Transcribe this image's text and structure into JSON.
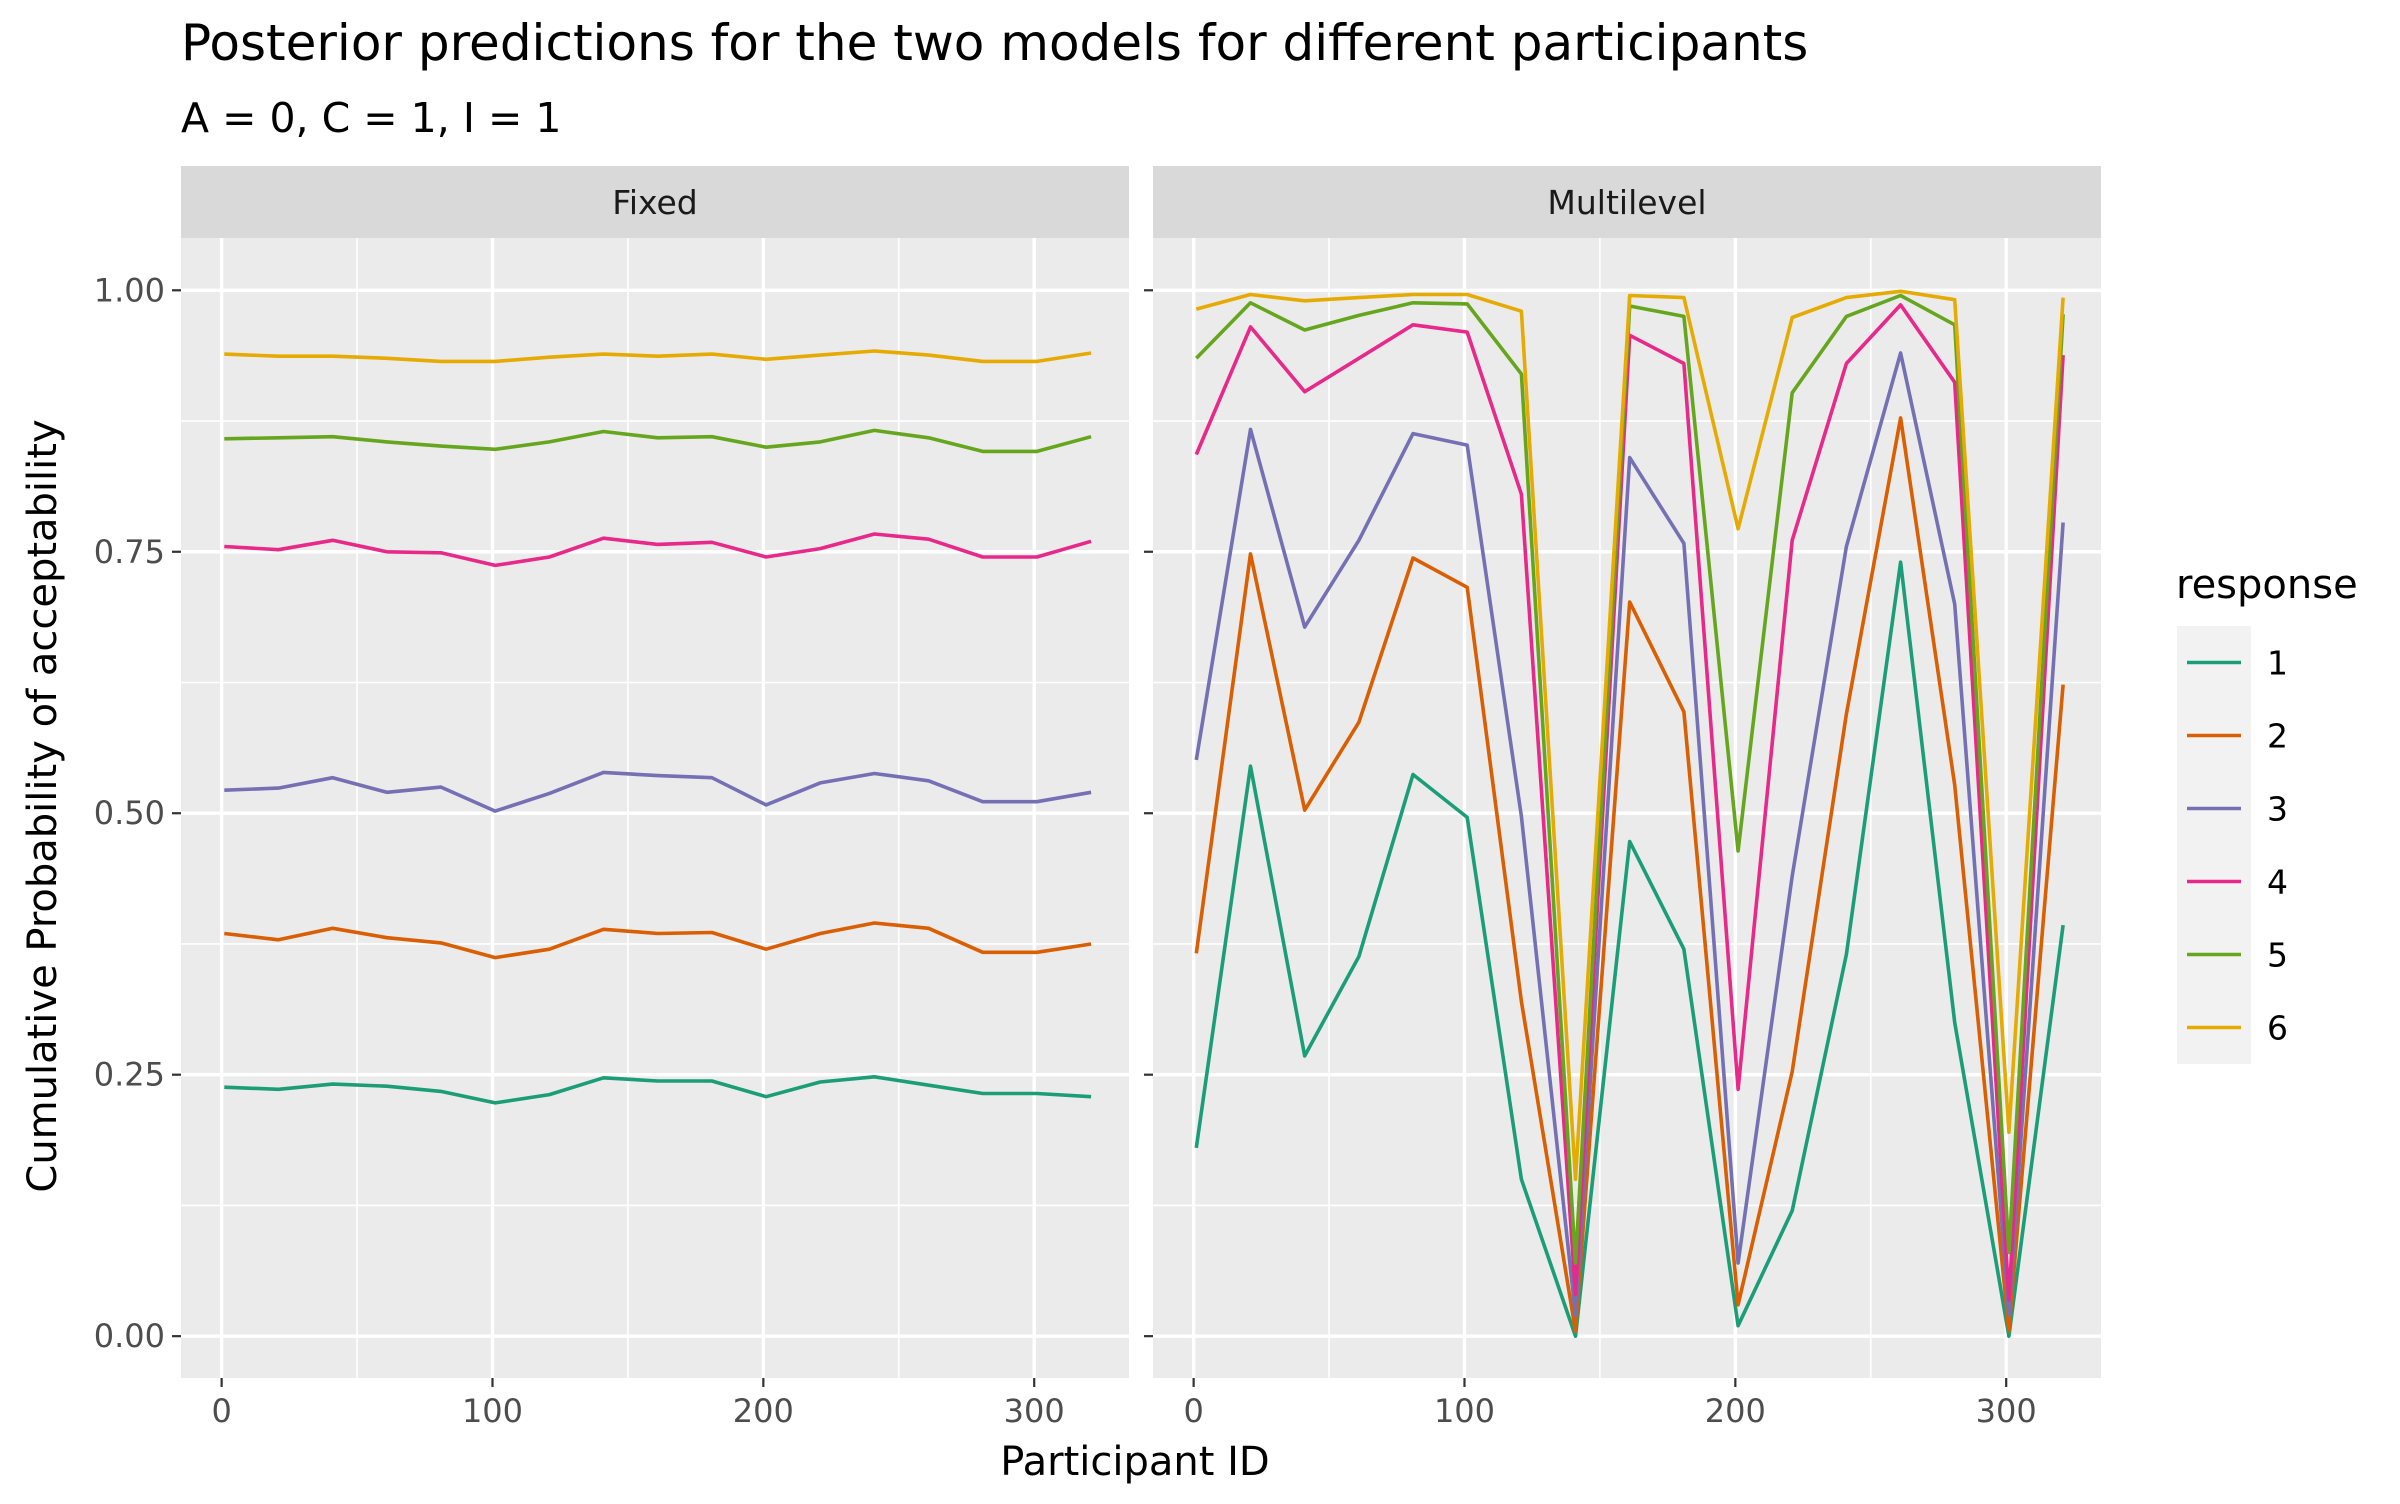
{
  "chart_data": {
    "type": "line",
    "title": "Posterior predictions for the two models for different participants",
    "subtitle": "A = 0, C = 1, I = 1",
    "xlabel": "Participant ID",
    "ylabel": "Cumulative Probability of acceptability",
    "xlim": [
      -15,
      335
    ],
    "ylim": [
      -0.04,
      1.05
    ],
    "xticks": [
      0,
      100,
      200,
      300
    ],
    "xtick_labels": [
      "0",
      "100",
      "200",
      "300"
    ],
    "yticks": [
      0,
      0.25,
      0.5,
      0.75,
      1
    ],
    "ytick_labels": [
      "0.00",
      "0.25",
      "0.50",
      "0.75",
      "1.00"
    ],
    "grid": true,
    "legend": {
      "title": "response",
      "placement": "right",
      "labels": [
        "1",
        "2",
        "3",
        "4",
        "5",
        "6"
      ]
    },
    "colors": [
      "#1b9e77",
      "#d95f02",
      "#7570b3",
      "#e7298a",
      "#66a61e",
      "#e6ab02"
    ],
    "x": [
      1,
      21,
      41,
      61,
      81,
      101,
      121,
      141,
      161,
      181,
      201,
      221,
      241,
      261,
      281,
      301,
      321
    ],
    "panels": [
      {
        "name": "Fixed",
        "series": [
          {
            "name": "1",
            "values": [
              0.238,
              0.236,
              0.241,
              0.239,
              0.234,
              0.223,
              0.231,
              0.247,
              0.244,
              0.244,
              0.229,
              0.243,
              0.248,
              0.24,
              0.232,
              0.232,
              0.229
            ]
          },
          {
            "name": "2",
            "values": [
              0.385,
              0.379,
              0.39,
              0.381,
              0.376,
              0.362,
              0.37,
              0.389,
              0.385,
              0.386,
              0.37,
              0.385,
              0.395,
              0.39,
              0.367,
              0.367,
              0.375
            ]
          },
          {
            "name": "3",
            "values": [
              0.522,
              0.524,
              0.534,
              0.52,
              0.525,
              0.502,
              0.519,
              0.539,
              0.536,
              0.534,
              0.508,
              0.529,
              0.538,
              0.531,
              0.511,
              0.511,
              0.52
            ]
          },
          {
            "name": "4",
            "values": [
              0.755,
              0.752,
              0.761,
              0.75,
              0.749,
              0.737,
              0.745,
              0.763,
              0.757,
              0.759,
              0.745,
              0.753,
              0.767,
              0.762,
              0.745,
              0.745,
              0.76
            ]
          },
          {
            "name": "5",
            "values": [
              0.858,
              0.859,
              0.86,
              0.855,
              0.851,
              0.848,
              0.855,
              0.865,
              0.859,
              0.86,
              0.85,
              0.855,
              0.866,
              0.859,
              0.846,
              0.846,
              0.86
            ]
          },
          {
            "name": "6",
            "values": [
              0.939,
              0.937,
              0.937,
              0.935,
              0.932,
              0.932,
              0.936,
              0.939,
              0.937,
              0.939,
              0.934,
              0.938,
              0.942,
              0.938,
              0.932,
              0.932,
              0.94
            ]
          }
        ]
      },
      {
        "name": "Multilevel",
        "series": [
          {
            "name": "1",
            "values": [
              0.18,
              0.545,
              0.268,
              0.363,
              0.537,
              0.496,
              0.15,
              0.0,
              0.473,
              0.37,
              0.01,
              0.12,
              0.365,
              0.74,
              0.3,
              0.0,
              0.393
            ]
          },
          {
            "name": "2",
            "values": [
              0.366,
              0.748,
              0.503,
              0.587,
              0.744,
              0.716,
              0.32,
              0.005,
              0.702,
              0.597,
              0.03,
              0.253,
              0.595,
              0.878,
              0.527,
              0.005,
              0.623
            ]
          },
          {
            "name": "3",
            "values": [
              0.551,
              0.867,
              0.678,
              0.761,
              0.863,
              0.852,
              0.497,
              0.02,
              0.84,
              0.758,
              0.07,
              0.44,
              0.755,
              0.94,
              0.7,
              0.02,
              0.778
            ]
          },
          {
            "name": "4",
            "values": [
              0.843,
              0.965,
              0.903,
              0.935,
              0.967,
              0.96,
              0.805,
              0.04,
              0.957,
              0.93,
              0.236,
              0.761,
              0.93,
              0.986,
              0.912,
              0.035,
              0.938
            ]
          },
          {
            "name": "5",
            "values": [
              0.935,
              0.988,
              0.962,
              0.976,
              0.988,
              0.987,
              0.92,
              0.07,
              0.985,
              0.975,
              0.464,
              0.902,
              0.975,
              0.995,
              0.967,
              0.08,
              0.977
            ]
          },
          {
            "name": "6",
            "values": [
              0.982,
              0.996,
              0.99,
              0.993,
              0.996,
              0.996,
              0.98,
              0.15,
              0.995,
              0.993,
              0.772,
              0.974,
              0.993,
              0.999,
              0.991,
              0.195,
              0.993
            ]
          }
        ]
      }
    ]
  }
}
